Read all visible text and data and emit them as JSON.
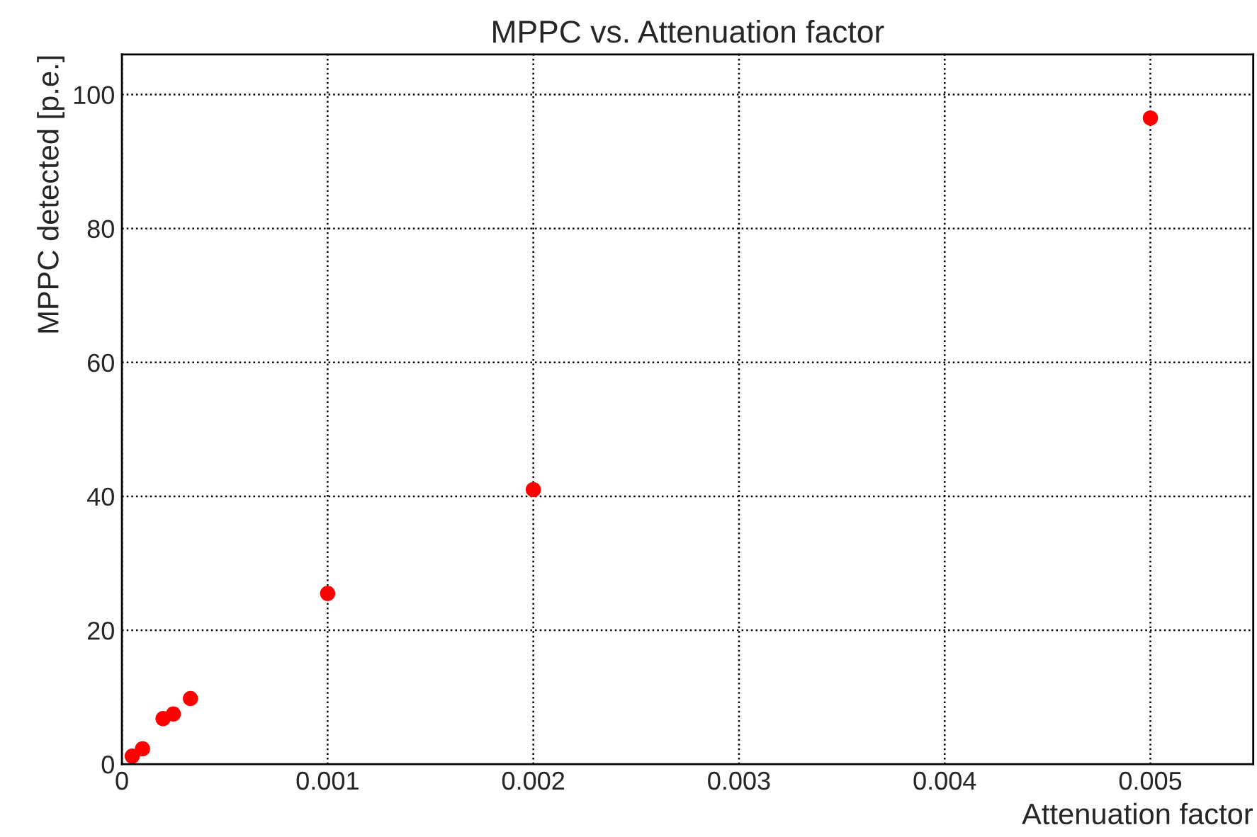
{
  "chart_data": {
    "type": "scatter",
    "title": "MPPC vs. Attenuation factor",
    "xlabel": "Attenuation factor",
    "ylabel": "MPPC detected [p.e.]",
    "x": [
      5e-05,
      0.0001,
      0.0002,
      0.00025,
      0.000333,
      0.001,
      0.002,
      0.005
    ],
    "series": [
      {
        "color": "#ff0000",
        "values": [
          1.2,
          2.3,
          6.8,
          7.5,
          9.8,
          25.5,
          41,
          96.5
        ]
      }
    ],
    "xlim": [
      0,
      0.0055
    ],
    "ylim": [
      0,
      106
    ],
    "xticks": [
      0,
      0.001,
      0.002,
      0.003,
      0.004,
      0.005
    ],
    "yticks": [
      0,
      20,
      40,
      60,
      80,
      100
    ],
    "grid": true,
    "marker": "circle",
    "legend": false
  }
}
